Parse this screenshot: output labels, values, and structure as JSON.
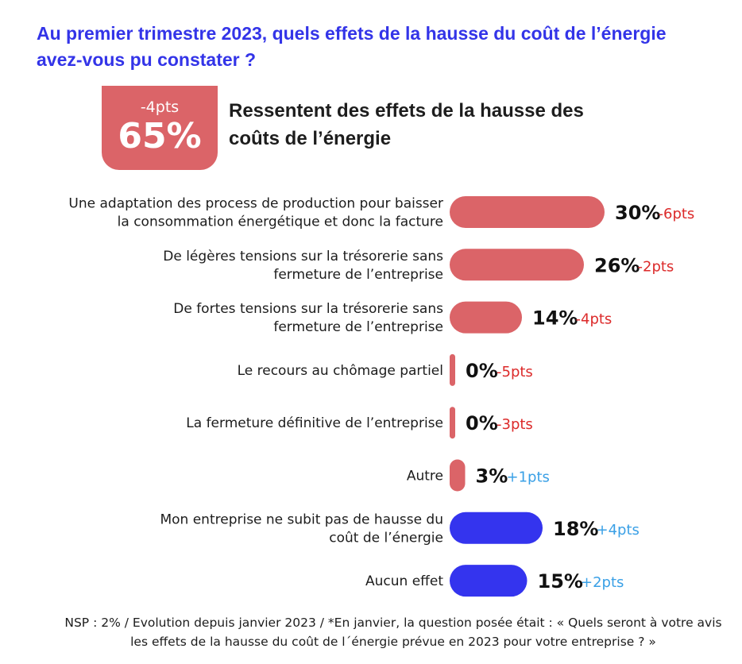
{
  "title": "Au premier trimestre 2023, quels effets de la hausse du coût de l’énergie avez-vous pu constater ?",
  "summary": {
    "change": "-4pts",
    "value": "65%",
    "text": "Ressentent des effets de la hausse des coûts de l’énergie"
  },
  "colors": {
    "negative_bar": "#db6468",
    "positive_bar": "#3434ee",
    "negative_change": "#dc2a2a",
    "positive_change": "#3aa0e6",
    "title": "#3334e8"
  },
  "chart_data": {
    "type": "bar",
    "orientation": "horizontal",
    "categories": [
      [
        "Une adaptation des process de production pour baisser",
        "la consommation énergétique et donc la facture"
      ],
      [
        "De légères tensions sur la trésorerie sans",
        "fermeture de l’entreprise"
      ],
      [
        "De fortes tensions sur la trésorerie sans",
        "fermeture de l’entreprise"
      ],
      [
        "Le recours au chômage partiel"
      ],
      [
        "La fermeture définitive de l’entreprise"
      ],
      [
        "Autre"
      ],
      [
        "Mon entreprise ne subit pas de hausse du",
        "coût de l’énergie"
      ],
      [
        "Aucun effet"
      ]
    ],
    "values": [
      30,
      26,
      14,
      0,
      0,
      3,
      18,
      15
    ],
    "value_labels": [
      "30%",
      "26%",
      "14%",
      "0%",
      "0%",
      "3%",
      "18%",
      "15%"
    ],
    "changes": [
      "-6pts",
      "-2pts",
      "-4pts",
      "-5pts",
      "-3pts",
      "+1pts",
      "+4pts",
      "+2pts"
    ],
    "group": [
      "effect",
      "effect",
      "effect",
      "effect",
      "effect",
      "effect",
      "no_effect",
      "no_effect"
    ],
    "unit": "%"
  },
  "footnote": "NSP : 2% / Evolution depuis janvier 2023 / *En janvier, la question posée était : « Quels seront à votre avis les effets de la hausse du coût de l´énergie prévue en 2023 pour votre entreprise ? »"
}
